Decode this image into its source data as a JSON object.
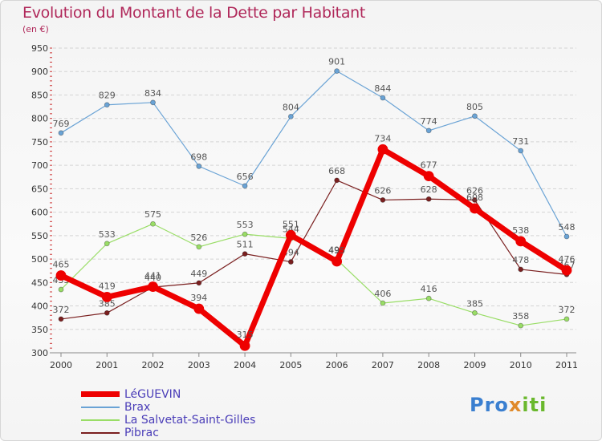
{
  "title": "Evolution du Montant de la Dette par Habitant",
  "subtitle": "(en €)",
  "logo": {
    "text": "Proxiti",
    "colors": [
      "#3a7fd0",
      "#e08a2a",
      "#6ab82d"
    ]
  },
  "chart_data": {
    "type": "line",
    "x": [
      2000,
      2001,
      2002,
      2003,
      2004,
      2005,
      2006,
      2007,
      2008,
      2009,
      2010,
      2011
    ],
    "ylim": [
      300,
      950
    ],
    "yticks": [
      300,
      350,
      400,
      450,
      500,
      550,
      600,
      650,
      700,
      750,
      800,
      850,
      900,
      950
    ],
    "grid": "horizontal dashed",
    "legend_position": "bottom-left",
    "series": [
      {
        "name": "Brax",
        "color": "#6aa3d5",
        "values": [
          769,
          829,
          834,
          698,
          656,
          804,
          901,
          844,
          774,
          805,
          731,
          548
        ]
      },
      {
        "name": "La Salvetat-Saint-Gilles",
        "color": "#99dd66",
        "values": [
          435,
          533,
          575,
          526,
          553,
          544,
          499,
          406,
          416,
          385,
          358,
          372
        ]
      },
      {
        "name": "Pibrac",
        "color": "#7a1f1f",
        "values": [
          372,
          385,
          440,
          449,
          511,
          494,
          668,
          626,
          628,
          626,
          478,
          467
        ]
      },
      {
        "name": "LéGUEVIN",
        "color": "#ee0000",
        "values": [
          465,
          419,
          441,
          394,
          315,
          551,
          495,
          734,
          677,
          608,
          538,
          476
        ]
      }
    ],
    "legend": [
      {
        "name": "LéGUEVIN",
        "color": "#ee0000"
      },
      {
        "name": "Brax",
        "color": "#6aa3d5"
      },
      {
        "name": "La Salvetat-Saint-Gilles",
        "color": "#99dd66"
      },
      {
        "name": "Pibrac",
        "color": "#7a1f1f"
      }
    ]
  }
}
